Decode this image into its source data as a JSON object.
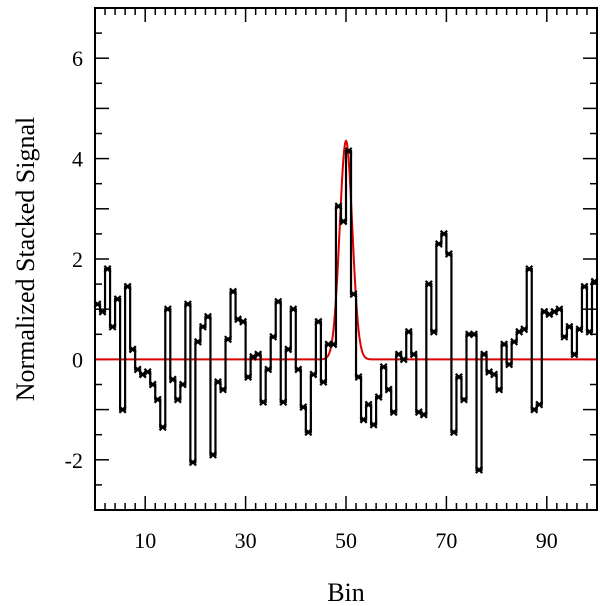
{
  "chart_data": {
    "type": "line",
    "xlabel": "Bin",
    "ylabel": "Normalized Stacked Signal",
    "xlim": [
      0,
      100
    ],
    "ylim": [
      -3,
      7
    ],
    "x_ticks": [
      10,
      30,
      50,
      70,
      90
    ],
    "y_ticks": [
      -2,
      0,
      2,
      4,
      6
    ],
    "grid": false,
    "colors": {
      "data": "#000000",
      "fit": "#dd0000",
      "frame": "#000000"
    },
    "series": [
      {
        "style": "histogram-step-with-x-markers",
        "x": [
          1,
          2,
          3,
          4,
          5,
          6,
          7,
          8,
          9,
          10,
          11,
          12,
          13,
          14,
          15,
          16,
          17,
          18,
          19,
          20,
          21,
          22,
          23,
          24,
          25,
          26,
          27,
          28,
          29,
          30,
          31,
          32,
          33,
          34,
          35,
          36,
          37,
          38,
          39,
          40,
          41,
          42,
          43,
          44,
          45,
          46,
          47,
          48,
          49,
          50,
          51,
          52,
          53,
          54,
          55,
          56,
          57,
          58,
          59,
          60,
          61,
          62,
          63,
          64,
          65,
          66,
          67,
          68,
          69,
          70,
          71,
          72,
          73,
          74,
          75,
          76,
          77,
          78,
          79,
          80,
          81,
          82,
          83,
          84,
          85,
          86,
          87,
          88,
          89,
          90,
          91,
          92,
          93,
          94,
          95,
          96,
          97,
          98,
          99,
          100
        ],
        "values": [
          1.1,
          0.95,
          1.8,
          0.65,
          1.2,
          -1.0,
          1.45,
          0.2,
          -0.2,
          -0.3,
          -0.25,
          -0.5,
          -0.8,
          -1.35,
          1.0,
          -0.4,
          -0.8,
          -0.5,
          1.1,
          -2.05,
          0.35,
          0.65,
          0.85,
          -1.9,
          -0.45,
          -0.6,
          0.4,
          1.35,
          0.8,
          0.75,
          -0.35,
          0.05,
          0.1,
          -0.85,
          -0.2,
          0.45,
          1.15,
          -0.85,
          0.2,
          1.0,
          -0.2,
          -0.95,
          -1.45,
          -0.3,
          0.75,
          -0.45,
          0.3,
          0.3,
          3.05,
          2.75,
          4.15,
          1.3,
          -0.35,
          -1.2,
          -0.9,
          -1.3,
          -0.75,
          -0.15,
          -0.6,
          -1.05,
          0.1,
          0.0,
          0.55,
          0.1,
          -1.05,
          -1.1,
          1.5,
          0.55,
          2.3,
          2.5,
          2.1,
          -1.45,
          -0.35,
          -0.8,
          0.5,
          0.5,
          -2.2,
          0.1,
          -0.25,
          -0.3,
          -0.6,
          0.3,
          -0.1,
          0.35,
          0.55,
          0.6,
          1.8,
          -1.0,
          -0.9,
          0.95,
          0.9,
          0.95,
          1.0,
          0.45,
          0.65,
          0.1,
          0.6,
          1.45,
          0.55,
          1.55
        ]
      },
      {
        "style": "gaussian-fit",
        "model": {
          "amplitude": 4.35,
          "center": 50.0,
          "sigma": 1.25,
          "baseline": 0.0
        }
      }
    ]
  }
}
